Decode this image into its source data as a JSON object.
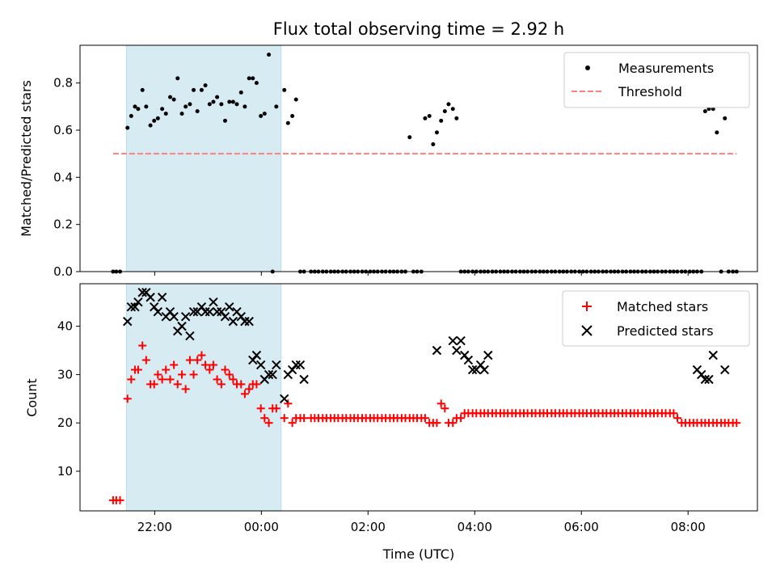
{
  "chart_data": {
    "title": "Flux total observing time = 2.92 h",
    "type": "scatter",
    "x_unit": "hours relative to 00:00 UTC of the observing night",
    "xlabel": "Time (UTC)",
    "xlim": [
      -3.4,
      9.3
    ],
    "xticks": [
      {
        "value": -2,
        "label": "22:00"
      },
      {
        "value": 0,
        "label": "00:00"
      },
      {
        "value": 2,
        "label": "02:00"
      },
      {
        "value": 4,
        "label": "04:00"
      },
      {
        "value": 6,
        "label": "06:00"
      },
      {
        "value": 8,
        "label": "08:00"
      }
    ],
    "shaded_span": {
      "x_start": -2.53,
      "x_end": 0.37,
      "color": "#add8e6"
    },
    "panels": [
      {
        "ylabel": "Matched/Predicted stars",
        "ylim": [
          0,
          0.96
        ],
        "yticks": [
          {
            "value": 0,
            "label": "0.0"
          },
          {
            "value": 0.2,
            "label": "0.2"
          },
          {
            "value": 0.4,
            "label": "0.4"
          },
          {
            "value": 0.6,
            "label": "0.6"
          },
          {
            "value": 0.8,
            "label": "0.8"
          }
        ],
        "legend_position": "top-right",
        "series": [
          {
            "name": "Measurements",
            "type": "scatter",
            "marker": "dot",
            "color": "#000000",
            "x": [
              -2.78,
              -2.72,
              -2.65,
              -2.51,
              -2.44,
              -2.37,
              -2.31,
              -2.23,
              -2.16,
              -2.08,
              -2.01,
              -1.94,
              -1.86,
              -1.79,
              -1.71,
              -1.64,
              -1.57,
              -1.49,
              -1.42,
              -1.34,
              -1.27,
              -1.2,
              -1.12,
              -1.05,
              -0.97,
              -0.9,
              -0.83,
              -0.75,
              -0.68,
              -0.6,
              -0.53,
              -0.46,
              -0.38,
              -0.31,
              -0.23,
              -0.16,
              -0.09,
              -0.01,
              0.06,
              0.14,
              0.21,
              0.28,
              0.43,
              0.5,
              0.58,
              0.65,
              0.73,
              0.8,
              0.93,
              1.0,
              1.07,
              1.15,
              1.22,
              1.3,
              1.37,
              1.44,
              1.52,
              1.59,
              1.67,
              1.74,
              1.81,
              1.89,
              1.96,
              2.04,
              2.11,
              2.18,
              2.26,
              2.33,
              2.41,
              2.48,
              2.55,
              2.63,
              2.7,
              2.78,
              2.85,
              2.92,
              3.0,
              3.07,
              3.15,
              3.22,
              3.29,
              3.37,
              3.44,
              3.51,
              3.59,
              3.66,
              3.74,
              3.81,
              3.88,
              3.96,
              4.03,
              4.11,
              4.18,
              4.25,
              4.33,
              4.4,
              4.48,
              4.55,
              4.62,
              4.7,
              4.77,
              4.85,
              4.92,
              4.99,
              5.07,
              5.14,
              5.22,
              5.29,
              5.36,
              5.44,
              5.51,
              5.59,
              5.66,
              5.73,
              5.81,
              5.88,
              5.96,
              6.03,
              6.1,
              6.18,
              6.25,
              6.32,
              6.4,
              6.47,
              6.55,
              6.62,
              6.69,
              6.77,
              6.84,
              6.92,
              6.99,
              7.06,
              7.14,
              7.21,
              7.29,
              7.36,
              7.43,
              7.51,
              7.58,
              7.66,
              7.73,
              7.8,
              7.88,
              7.95,
              8.03,
              8.1,
              8.17,
              8.25,
              8.32,
              8.39,
              8.47,
              8.54,
              8.62,
              8.69,
              8.76,
              8.84,
              8.91
            ],
            "y": [
              0,
              0,
              0,
              0.61,
              0.66,
              0.7,
              0.69,
              0.77,
              0.7,
              0.62,
              0.64,
              0.65,
              0.69,
              0.67,
              0.74,
              0.73,
              0.82,
              0.67,
              0.7,
              0.71,
              0.77,
              0.68,
              0.77,
              0.79,
              0.71,
              0.72,
              0.74,
              0.71,
              0.64,
              0.72,
              0.72,
              0.71,
              0.76,
              0.7,
              0.82,
              0.82,
              0.8,
              0.66,
              0.67,
              0.92,
              0,
              0.7,
              0.77,
              0.63,
              0.66,
              0.73,
              0,
              0,
              0,
              0,
              0,
              0,
              0,
              0,
              0,
              0,
              0,
              0,
              0,
              0,
              0,
              0,
              0,
              0,
              0,
              0,
              0,
              0,
              0,
              0,
              0,
              0,
              0,
              0.57,
              0,
              0,
              0,
              0.65,
              0.66,
              0.54,
              0.59,
              0.64,
              0.68,
              0.71,
              0.69,
              0.65,
              0,
              0,
              0,
              0,
              0,
              0,
              0,
              0,
              0,
              0,
              0,
              0,
              0,
              0,
              0,
              0,
              0,
              0,
              0,
              0,
              0,
              0,
              0,
              0,
              0,
              0,
              0,
              0,
              0,
              0,
              0,
              0,
              0,
              0,
              0,
              0,
              0,
              0,
              0,
              0,
              0,
              0,
              0,
              0,
              0,
              0,
              0,
              0,
              0,
              0,
              0,
              0,
              0,
              0,
              0,
              0,
              0,
              0,
              0,
              0,
              0,
              0,
              0.68,
              0.69,
              0.69,
              0.59,
              0,
              0.65,
              0,
              0,
              0
            ]
          },
          {
            "name": "Threshold",
            "type": "line",
            "style": "dashed",
            "color": "#ff7f7f",
            "x": [
              -2.78,
              8.91
            ],
            "y": [
              0.5,
              0.5
            ]
          }
        ]
      },
      {
        "ylabel": "Count",
        "ylim": [
          1.8,
          48.8
        ],
        "yticks": [
          {
            "value": 10,
            "label": "10"
          },
          {
            "value": 20,
            "label": "20"
          },
          {
            "value": 30,
            "label": "30"
          },
          {
            "value": 40,
            "label": "40"
          }
        ],
        "legend_position": "top-right",
        "series": [
          {
            "name": "Matched stars",
            "type": "scatter",
            "marker": "plus",
            "color": "#ff0000",
            "x": [
              -2.78,
              -2.72,
              -2.65,
              -2.51,
              -2.44,
              -2.37,
              -2.31,
              -2.23,
              -2.16,
              -2.08,
              -2.01,
              -1.94,
              -1.86,
              -1.79,
              -1.71,
              -1.64,
              -1.57,
              -1.49,
              -1.42,
              -1.34,
              -1.27,
              -1.2,
              -1.12,
              -1.05,
              -0.97,
              -0.9,
              -0.83,
              -0.75,
              -0.68,
              -0.6,
              -0.53,
              -0.46,
              -0.38,
              -0.31,
              -0.23,
              -0.16,
              -0.09,
              -0.01,
              0.06,
              0.14,
              0.21,
              0.28,
              0.43,
              0.5,
              0.58,
              0.65,
              0.73,
              0.8,
              0.93,
              1.0,
              1.07,
              1.15,
              1.22,
              1.3,
              1.37,
              1.44,
              1.52,
              1.59,
              1.67,
              1.74,
              1.81,
              1.89,
              1.96,
              2.04,
              2.11,
              2.18,
              2.26,
              2.33,
              2.41,
              2.48,
              2.55,
              2.63,
              2.7,
              2.78,
              2.85,
              2.92,
              3.0,
              3.07,
              3.15,
              3.22,
              3.29,
              3.37,
              3.44,
              3.51,
              3.59,
              3.66,
              3.74,
              3.81,
              3.88,
              3.96,
              4.03,
              4.11,
              4.18,
              4.25,
              4.33,
              4.4,
              4.48,
              4.55,
              4.62,
              4.7,
              4.77,
              4.85,
              4.92,
              4.99,
              5.07,
              5.14,
              5.22,
              5.29,
              5.36,
              5.44,
              5.51,
              5.59,
              5.66,
              5.73,
              5.81,
              5.88,
              5.96,
              6.03,
              6.1,
              6.18,
              6.25,
              6.32,
              6.4,
              6.47,
              6.55,
              6.62,
              6.69,
              6.77,
              6.84,
              6.92,
              6.99,
              7.06,
              7.14,
              7.21,
              7.29,
              7.36,
              7.43,
              7.51,
              7.58,
              7.66,
              7.73,
              7.8,
              7.88,
              7.95,
              8.03,
              8.1,
              8.17,
              8.25,
              8.32,
              8.39,
              8.47,
              8.54,
              8.62,
              8.69,
              8.76,
              8.84,
              8.91
            ],
            "y": [
              4,
              4,
              4,
              25,
              29,
              31,
              31,
              36,
              33,
              28,
              28,
              30,
              29,
              31,
              29,
              32,
              28,
              30,
              27,
              33,
              30,
              33,
              34,
              32,
              31,
              32,
              29,
              28,
              31,
              30,
              29,
              28,
              28,
              26,
              27,
              28,
              28,
              23,
              21,
              20,
              23,
              23,
              21,
              24,
              20,
              21,
              21,
              21,
              21,
              21,
              21,
              21,
              21,
              21,
              21,
              21,
              21,
              21,
              21,
              21,
              21,
              21,
              21,
              21,
              21,
              21,
              21,
              21,
              21,
              21,
              21,
              21,
              21,
              21,
              21,
              21,
              21,
              21,
              20,
              20,
              20,
              24,
              23,
              20,
              20,
              21,
              21,
              22,
              22,
              22,
              22,
              22,
              22,
              22,
              22,
              22,
              22,
              22,
              22,
              22,
              22,
              22,
              22,
              22,
              22,
              22,
              22,
              22,
              22,
              22,
              22,
              22,
              22,
              22,
              22,
              22,
              22,
              22,
              22,
              22,
              22,
              22,
              22,
              22,
              22,
              22,
              22,
              22,
              22,
              22,
              22,
              22,
              22,
              22,
              22,
              22,
              22,
              22,
              22,
              22,
              22,
              21,
              20,
              20,
              20,
              20,
              20,
              20,
              20,
              20,
              20,
              20,
              20,
              20,
              20,
              20,
              20
            ]
          },
          {
            "name": "Predicted stars",
            "type": "scatter",
            "marker": "x",
            "color": "#000000",
            "x": [
              -2.51,
              -2.44,
              -2.37,
              -2.31,
              -2.23,
              -2.16,
              -2.08,
              -2.01,
              -1.94,
              -1.86,
              -1.79,
              -1.71,
              -1.64,
              -1.57,
              -1.49,
              -1.42,
              -1.34,
              -1.27,
              -1.2,
              -1.12,
              -1.05,
              -0.97,
              -0.9,
              -0.83,
              -0.75,
              -0.68,
              -0.6,
              -0.53,
              -0.46,
              -0.38,
              -0.31,
              -0.23,
              -0.16,
              -0.09,
              -0.01,
              0.06,
              0.14,
              0.21,
              0.28,
              0.43,
              0.5,
              0.58,
              0.65,
              0.73,
              0.8,
              3.29,
              3.59,
              3.66,
              3.74,
              3.81,
              3.88,
              3.96,
              4.03,
              4.11,
              4.18,
              4.25,
              8.17,
              8.25,
              8.32,
              8.39,
              8.47,
              8.69
            ],
            "y": [
              41,
              44,
              44,
              45,
              47,
              47,
              46,
              44,
              43,
              46,
              42,
              43,
              42,
              39,
              40,
              42,
              38,
              43,
              43,
              44,
              43,
              43,
              45,
              43,
              43,
              42,
              44,
              41,
              43,
              42,
              41,
              41,
              33,
              34,
              32,
              29,
              30,
              30,
              32,
              25,
              30,
              31,
              32,
              32,
              29,
              35,
              37,
              35,
              37,
              34,
              33,
              31,
              31,
              32,
              31,
              34,
              31,
              30,
              29,
              29,
              34,
              31
            ]
          }
        ]
      }
    ]
  }
}
